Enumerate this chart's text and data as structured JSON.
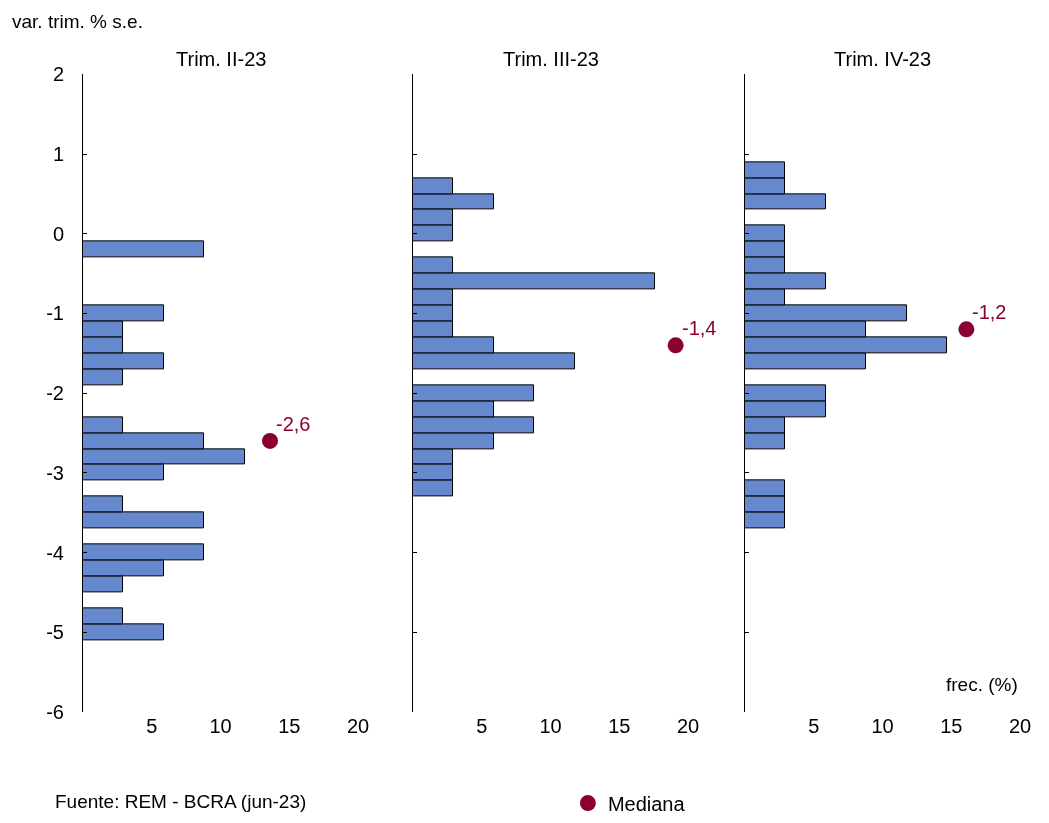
{
  "chart_data": [
    {
      "type": "histogram",
      "orientation": "horizontal",
      "title": "Trim. II-23",
      "ylabel": "var. trim. % s.e.",
      "annotations": [
        "Fuente: REM - BCRA (jun-23)",
        {
          "text": "-2,6",
          "x": 13.6,
          "y": -2.6
        }
      ],
      "bins": [
        -5.1,
        -4.9,
        -4.7,
        -4.5,
        -4.3,
        -4.1,
        -3.9,
        -3.7,
        -3.5,
        -3.3,
        -3.1,
        -2.9,
        -2.7,
        -2.5,
        -2.3,
        -2.1,
        -1.9,
        -1.7,
        -1.5,
        -1.3,
        -1.1,
        -0.9,
        -0.7,
        -0.5,
        -0.3,
        -0.1,
        0.1,
        0.3,
        0.5,
        0.7,
        0.9
      ],
      "series": [
        {
          "color": "#6688cc",
          "values": [
            5.9,
            2.9,
            0,
            2.9,
            5.9,
            8.8,
            0,
            8.8,
            2.9,
            0,
            5.9,
            11.8,
            8.8,
            2.9,
            0,
            0,
            2.9,
            5.9,
            2.9,
            2.9,
            5.9,
            0,
            0,
            0,
            8.8,
            0,
            0,
            0,
            0,
            0
          ]
        },
        {
          "type": "scatter",
          "marker": "circle",
          "color": "#8b0033",
          "x": [
            -2.6
          ],
          "values": [
            13.6
          ]
        }
      ],
      "xlim": [
        0,
        20
      ],
      "xticks": [
        5,
        10,
        15,
        20
      ],
      "ylim": [
        -6,
        2
      ],
      "yticks": [
        -6,
        -5,
        -4,
        -3,
        -2,
        -1,
        0,
        1,
        2
      ]
    },
    {
      "type": "histogram",
      "orientation": "horizontal",
      "title": "Trim. III-23",
      "legend": "bottom",
      "bins": [
        -5.1,
        -4.9,
        -4.7,
        -4.5,
        -4.3,
        -4.1,
        -3.9,
        -3.7,
        -3.5,
        -3.3,
        -3.1,
        -2.9,
        -2.7,
        -2.5,
        -2.3,
        -2.1,
        -1.9,
        -1.7,
        -1.5,
        -1.3,
        -1.1,
        -0.9,
        -0.7,
        -0.5,
        -0.3,
        -0.1,
        0.1,
        0.3,
        0.5,
        0.7,
        0.9
      ],
      "series": [
        {
          "color": "#6688cc",
          "values": [
            0,
            0,
            0,
            0,
            0,
            0,
            0,
            0,
            0,
            2.9,
            2.9,
            2.9,
            5.9,
            8.8,
            5.9,
            8.8,
            0,
            11.8,
            5.9,
            2.9,
            2.9,
            2.9,
            17.6,
            2.9,
            0,
            2.9,
            2.9,
            5.9,
            2.9,
            0
          ]
        },
        {
          "type": "scatter",
          "name": "Mediana",
          "marker": "circle",
          "color": "#8b0033",
          "x": [
            -1.4
          ],
          "values": [
            19.1
          ]
        }
      ],
      "annotations": [
        {
          "text": "-1,4",
          "x": 19.1,
          "y": -1.4
        }
      ],
      "xlim": [
        0,
        20
      ],
      "xticks": [
        5,
        10,
        15,
        20
      ],
      "ylim": [
        -6,
        2
      ],
      "yticks": [
        -6,
        -5,
        -4,
        -3,
        -2,
        -1,
        0,
        1,
        2
      ],
      "tick_labels": "x"
    },
    {
      "type": "histogram",
      "orientation": "horizontal",
      "title": "Trim. IV-23",
      "xlabel": "frec. (%)",
      "bins": [
        -5.1,
        -4.9,
        -4.7,
        -4.5,
        -4.3,
        -4.1,
        -3.9,
        -3.7,
        -3.5,
        -3.3,
        -3.1,
        -2.9,
        -2.7,
        -2.5,
        -2.3,
        -2.1,
        -1.9,
        -1.7,
        -1.5,
        -1.3,
        -1.1,
        -0.9,
        -0.7,
        -0.5,
        -0.3,
        -0.1,
        0.1,
        0.3,
        0.5,
        0.7,
        0.9
      ],
      "series": [
        {
          "color": "#6688cc",
          "values": [
            0,
            0,
            0,
            0,
            0,
            0,
            0,
            2.9,
            2.9,
            2.9,
            0,
            0,
            2.9,
            2.9,
            5.9,
            5.9,
            0,
            8.8,
            14.7,
            8.8,
            11.8,
            2.9,
            5.9,
            2.9,
            2.9,
            2.9,
            0,
            5.9,
            2.9,
            2.9
          ]
        },
        {
          "type": "scatter",
          "marker": "circle",
          "color": "#8b0033",
          "x": [
            -1.2
          ],
          "values": [
            16.1
          ]
        }
      ],
      "annotations": [
        {
          "text": "-1,2",
          "x": 16.1,
          "y": -1.2
        }
      ],
      "xlim": [
        0,
        20
      ],
      "xticks": [
        5,
        10,
        15,
        20
      ],
      "ylim": [
        -6,
        2
      ],
      "yticks": [
        -6,
        -5,
        -4,
        -3,
        -2,
        -1,
        0,
        1,
        2
      ],
      "tick_labels": "x"
    }
  ]
}
